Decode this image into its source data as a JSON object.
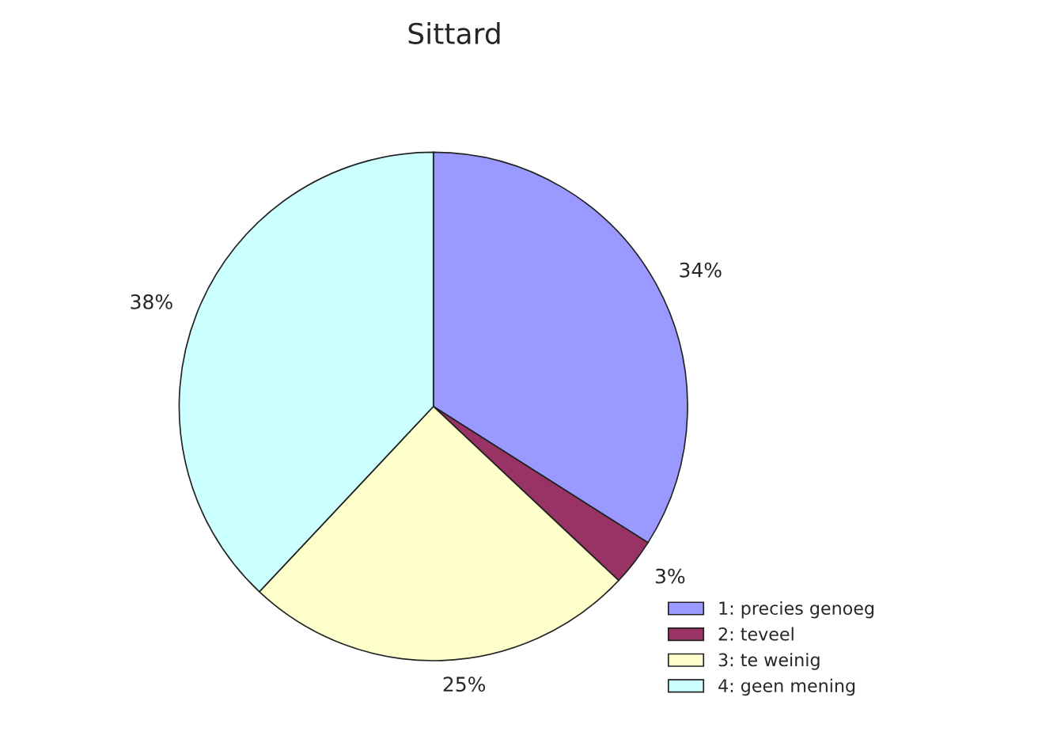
{
  "chart_data": {
    "type": "pie",
    "title": "Sittard",
    "categories": [
      "1: precies genoeg",
      "2: teveel",
      "3: te weinig",
      "4: geen mening"
    ],
    "values": [
      34,
      3,
      25,
      38
    ],
    "value_labels": [
      "34%",
      "3%",
      "25%",
      "38%"
    ],
    "colors": [
      "#9999ff",
      "#993366",
      "#ffffcc",
      "#ccffff"
    ],
    "legend": "bottom right"
  }
}
